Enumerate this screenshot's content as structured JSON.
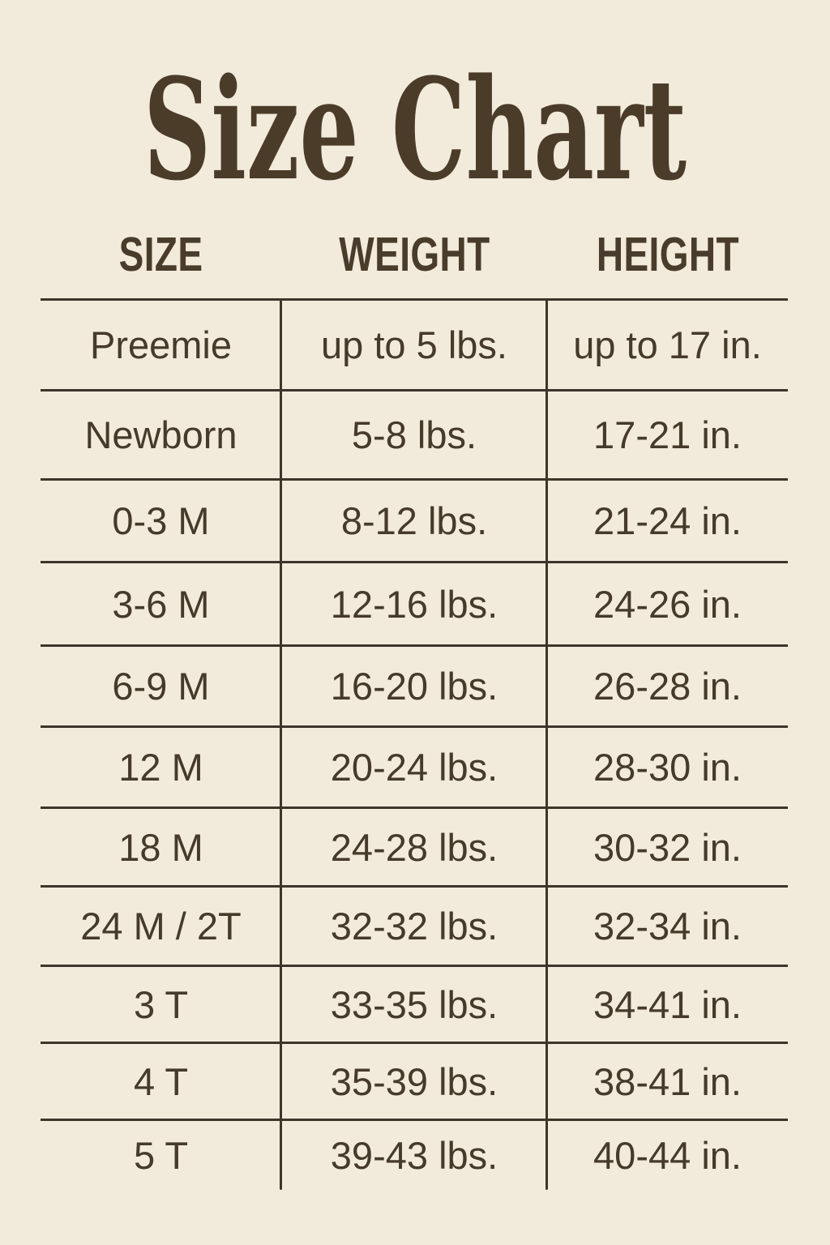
{
  "title": "Size Chart",
  "colors": {
    "background": "#f2ebdc",
    "text": "#463a2a",
    "title_text": "#4b3c2a",
    "grid_lines": "#3e352a"
  },
  "chart_data": {
    "type": "table",
    "title": "Size Chart",
    "columns": [
      "SIZE",
      "WEIGHT",
      "HEIGHT"
    ],
    "rows": [
      [
        "Preemie",
        "up to 5 lbs.",
        "up to 17 in."
      ],
      [
        "Newborn",
        "5-8 lbs.",
        "17-21 in."
      ],
      [
        "0-3 M",
        "8-12 lbs.",
        "21-24 in."
      ],
      [
        "3-6 M",
        "12-16 lbs.",
        "24-26 in."
      ],
      [
        "6-9 M",
        "16-20 lbs.",
        "26-28 in."
      ],
      [
        "12 M",
        "20-24 lbs.",
        "28-30 in."
      ],
      [
        "18 M",
        "24-28 lbs.",
        "30-32 in."
      ],
      [
        "24 M / 2T",
        "32-32 lbs.",
        "32-34 in."
      ],
      [
        "3 T",
        "33-35 lbs.",
        "34-41 in."
      ],
      [
        "4 T",
        "35-39 lbs.",
        "38-41 in."
      ],
      [
        "5 T",
        "39-43 lbs.",
        "40-44 in."
      ]
    ],
    "layout": {
      "grid": "horizontal rules between all rows, vertical rules between columns, no outer border, no rule below last row",
      "legend": "none"
    }
  }
}
